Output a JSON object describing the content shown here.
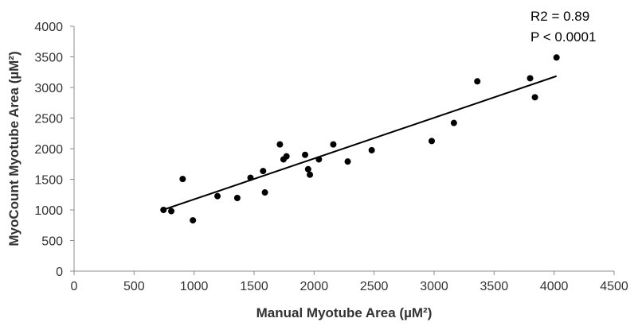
{
  "chart_data": {
    "type": "scatter",
    "xlabel": "Manual Myotube Area (µM²)",
    "ylabel": "MyoCount Myotube Area (µM²)",
    "xlim": [
      0,
      4500
    ],
    "ylim": [
      0,
      4000
    ],
    "x_ticks": [
      "0",
      "500",
      "1000",
      "1500",
      "2000",
      "2500",
      "3000",
      "3500",
      "4000",
      "4500"
    ],
    "y_ticks": [
      "0",
      "500",
      "1000",
      "1500",
      "2000",
      "2500",
      "3000",
      "3500",
      "4000"
    ],
    "annotations": [
      "R2 = 0.89",
      "P < 0.0001"
    ],
    "grid": false,
    "colors": {
      "points": "#000000",
      "trendline": "#000000",
      "axis": "#8c8c8c"
    },
    "trendline": {
      "x": [
        740,
        4020
      ],
      "y": [
        1000,
        3185
      ]
    },
    "points": [
      {
        "x": 745,
        "y": 1000
      },
      {
        "x": 810,
        "y": 980
      },
      {
        "x": 905,
        "y": 1505
      },
      {
        "x": 990,
        "y": 830
      },
      {
        "x": 1195,
        "y": 1225
      },
      {
        "x": 1360,
        "y": 1195
      },
      {
        "x": 1470,
        "y": 1525
      },
      {
        "x": 1575,
        "y": 1635
      },
      {
        "x": 1590,
        "y": 1285
      },
      {
        "x": 1715,
        "y": 2070
      },
      {
        "x": 1745,
        "y": 1825
      },
      {
        "x": 1770,
        "y": 1875
      },
      {
        "x": 1925,
        "y": 1900
      },
      {
        "x": 1950,
        "y": 1665
      },
      {
        "x": 1965,
        "y": 1575
      },
      {
        "x": 2040,
        "y": 1825
      },
      {
        "x": 2160,
        "y": 2070
      },
      {
        "x": 2280,
        "y": 1790
      },
      {
        "x": 2480,
        "y": 1975
      },
      {
        "x": 2980,
        "y": 2125
      },
      {
        "x": 3165,
        "y": 2420
      },
      {
        "x": 3360,
        "y": 3100
      },
      {
        "x": 3800,
        "y": 3150
      },
      {
        "x": 3840,
        "y": 2840
      },
      {
        "x": 4020,
        "y": 3490
      }
    ]
  }
}
